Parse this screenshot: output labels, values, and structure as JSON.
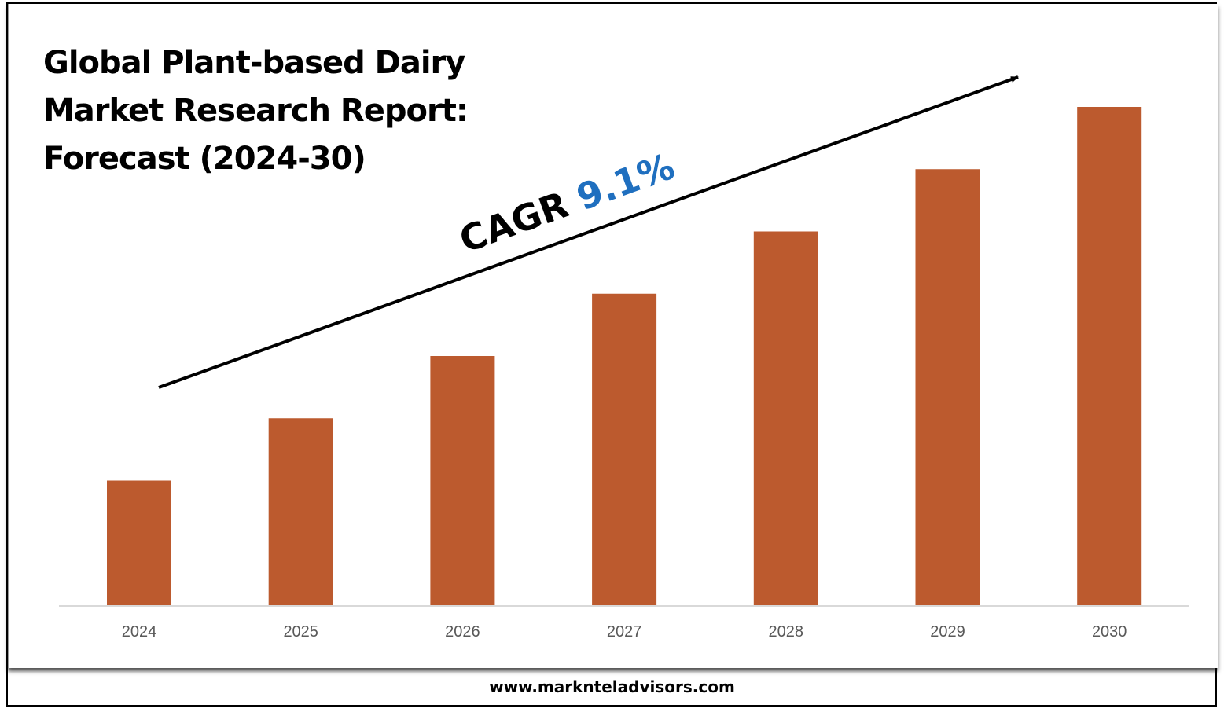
{
  "chart_data": {
    "type": "bar",
    "title": "Global Plant-based Dairy Market Research Report: Forecast (2024-30)",
    "title_lines": [
      "Global Plant-based Dairy",
      "Market Research Report:",
      "Forecast (2024-30)"
    ],
    "categories": [
      "2024",
      "2025",
      "2026",
      "2027",
      "2028",
      "2029",
      "2030"
    ],
    "values": [
      1.0,
      1.5,
      2.0,
      2.5,
      3.0,
      3.5,
      4.0
    ],
    "value_units": "relative (no y-axis shown)",
    "xlabel": "",
    "ylabel": "",
    "ylim": [
      0,
      4.3
    ],
    "grid": false,
    "bar_color": "#BC5A2E",
    "annotation": {
      "prefix": "CAGR ",
      "value": "9.1%",
      "value_color": "#1F6FBF"
    }
  },
  "footer": {
    "website": "www.marknteladvisors.com"
  }
}
